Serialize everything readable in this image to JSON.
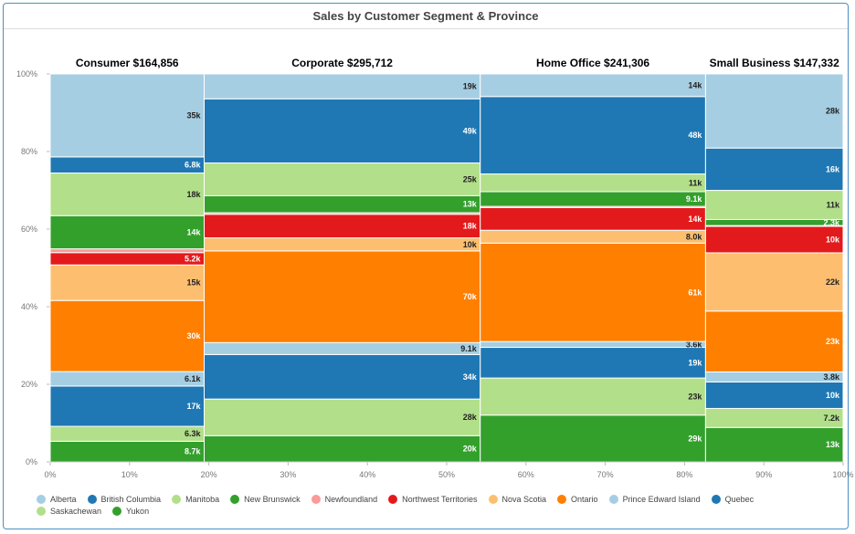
{
  "chart_data": {
    "type": "marimekko",
    "title": "Sales by Customer Segment & Province",
    "xlabel": "",
    "ylabel": "",
    "x_ticks": [
      "0%",
      "10%",
      "20%",
      "30%",
      "40%",
      "50%",
      "60%",
      "70%",
      "80%",
      "90%",
      "100%"
    ],
    "y_ticks": [
      "0%",
      "20%",
      "40%",
      "60%",
      "80%",
      "100%"
    ],
    "legend_position": "bottom",
    "provinces": [
      {
        "name": "Alberta",
        "color": "#a6cee3"
      },
      {
        "name": "British Columbia",
        "color": "#1f78b4"
      },
      {
        "name": "Manitoba",
        "color": "#b2df8a"
      },
      {
        "name": "New Brunswick",
        "color": "#33a02c"
      },
      {
        "name": "Newfoundland",
        "color": "#fb9a99"
      },
      {
        "name": "Northwest Territories",
        "color": "#e31a1c"
      },
      {
        "name": "Nova Scotia",
        "color": "#fdbf6f"
      },
      {
        "name": "Ontario",
        "color": "#ff7f00"
      },
      {
        "name": "Prince Edward Island",
        "color": "#a6cee3"
      },
      {
        "name": "Quebec",
        "color": "#1f78b4"
      },
      {
        "name": "Saskachewan",
        "color": "#b2df8a"
      },
      {
        "name": "Yukon",
        "color": "#33a02c"
      }
    ],
    "segments": [
      {
        "name": "Consumer",
        "label": "Consumer $164,856",
        "total": 164856,
        "values": [
          {
            "province": "Yukon",
            "value": 8700,
            "label": "8.7k"
          },
          {
            "province": "Saskachewan",
            "value": 6300,
            "label": "6.3k"
          },
          {
            "province": "Quebec",
            "value": 17000,
            "label": "17k"
          },
          {
            "province": "Prince Edward Island",
            "value": 6100,
            "label": "6.1k"
          },
          {
            "province": "Ontario",
            "value": 30000,
            "label": "30k"
          },
          {
            "province": "Nova Scotia",
            "value": 15000,
            "label": "15k"
          },
          {
            "province": "Northwest Territories",
            "value": 5200,
            "label": "5.2k"
          },
          {
            "province": "Newfoundland",
            "value": 1600,
            "label": ""
          },
          {
            "province": "New Brunswick",
            "value": 14000,
            "label": "14k"
          },
          {
            "province": "Manitoba",
            "value": 18000,
            "label": "18k"
          },
          {
            "province": "British Columbia",
            "value": 6800,
            "label": "6.8k"
          },
          {
            "province": "Alberta",
            "value": 35000,
            "label": "35k"
          }
        ]
      },
      {
        "name": "Corporate",
        "label": "Corporate $295,712",
        "total": 295712,
        "values": [
          {
            "province": "Yukon",
            "value": 20000,
            "label": "20k"
          },
          {
            "province": "Saskachewan",
            "value": 28000,
            "label": "28k"
          },
          {
            "province": "Quebec",
            "value": 34000,
            "label": "34k"
          },
          {
            "province": "Prince Edward Island",
            "value": 9100,
            "label": "9.1k"
          },
          {
            "province": "Ontario",
            "value": 70000,
            "label": "70k"
          },
          {
            "province": "Nova Scotia",
            "value": 10000,
            "label": "10k"
          },
          {
            "province": "Northwest Territories",
            "value": 18000,
            "label": "18k"
          },
          {
            "province": "Newfoundland",
            "value": 1200,
            "label": ""
          },
          {
            "province": "New Brunswick",
            "value": 13000,
            "label": "13k"
          },
          {
            "province": "Manitoba",
            "value": 25000,
            "label": "25k"
          },
          {
            "province": "British Columbia",
            "value": 49000,
            "label": "49k"
          },
          {
            "province": "Alberta",
            "value": 19000,
            "label": "19k"
          }
        ]
      },
      {
        "name": "Home Office",
        "label": "Home Office $241,306",
        "total": 241306,
        "values": [
          {
            "province": "Yukon",
            "value": 29000,
            "label": "29k"
          },
          {
            "province": "Saskachewan",
            "value": 23000,
            "label": "23k"
          },
          {
            "province": "Quebec",
            "value": 19000,
            "label": "19k"
          },
          {
            "province": "Prince Edward Island",
            "value": 3600,
            "label": "3.6k"
          },
          {
            "province": "Ontario",
            "value": 61000,
            "label": "61k"
          },
          {
            "province": "Nova Scotia",
            "value": 8000,
            "label": "8.0k"
          },
          {
            "province": "Northwest Territories",
            "value": 14000,
            "label": "14k"
          },
          {
            "province": "Newfoundland",
            "value": 800,
            "label": ""
          },
          {
            "province": "New Brunswick",
            "value": 9100,
            "label": "9.1k"
          },
          {
            "province": "Manitoba",
            "value": 11000,
            "label": "11k"
          },
          {
            "province": "British Columbia",
            "value": 48000,
            "label": "48k"
          },
          {
            "province": "Alberta",
            "value": 14000,
            "label": "14k"
          }
        ]
      },
      {
        "name": "Small Business",
        "label": "Small Business $147,332",
        "total": 147332,
        "values": [
          {
            "province": "Yukon",
            "value": 13000,
            "label": "13k"
          },
          {
            "province": "Saskachewan",
            "value": 7200,
            "label": "7.2k"
          },
          {
            "province": "Quebec",
            "value": 10000,
            "label": "10k"
          },
          {
            "province": "Prince Edward Island",
            "value": 3800,
            "label": "3.8k"
          },
          {
            "province": "Ontario",
            "value": 23000,
            "label": "23k"
          },
          {
            "province": "Nova Scotia",
            "value": 22000,
            "label": "22k"
          },
          {
            "province": "Northwest Territories",
            "value": 10000,
            "label": "10k"
          },
          {
            "province": "Newfoundland",
            "value": 300,
            "label": ""
          },
          {
            "province": "New Brunswick",
            "value": 2300,
            "label": "2.3k"
          },
          {
            "province": "Manitoba",
            "value": 11000,
            "label": "11k"
          },
          {
            "province": "British Columbia",
            "value": 16000,
            "label": "16k"
          },
          {
            "province": "Alberta",
            "value": 28000,
            "label": "28k"
          }
        ]
      }
    ]
  }
}
